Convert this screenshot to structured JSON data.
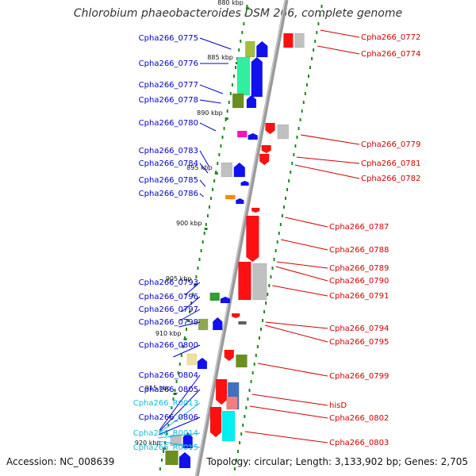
{
  "title": "Chlorobium phaeobacteroides DSM 266, complete genome",
  "footer": {
    "accession": "Accession: NC_008639",
    "topology": "Topology: circular; Length: 3,133,902 bp; Genes: 2,705"
  },
  "colors": {
    "left_label": "#0000c8",
    "right_label": "#d00000",
    "rna_label": "#18b8d8",
    "backbone": "#9a9a9a",
    "tick": "#1a8a1a"
  },
  "kbp_labels": [
    "880 kbp",
    "885 kbp",
    "890 kbp",
    "895 kbp",
    "900 kbp",
    "905 kbp",
    "910 kbp",
    "915 kbp",
    "920 kbp"
  ],
  "left_genes": [
    "Cpha266_0775",
    "Cpha266_0776",
    "Cpha266_0777",
    "Cpha266_0778",
    "Cpha266_0780",
    "Cpha266_0783",
    "Cpha266_0784",
    "Cpha266_0785",
    "Cpha266_0786",
    "Cpha266_0793",
    "Cpha266_0796",
    "Cpha266_0797",
    "Cpha266_0798",
    "Cpha266_0800",
    "Cpha266_0804",
    "Cpha266_0805",
    "Cpha266_R0013",
    "Cpha266_0806",
    "Cpha266_R0014",
    "Cpha266_R0015"
  ],
  "right_genes": [
    "Cpha266_0772",
    "Cpha266_0774",
    "Cpha266_0779",
    "Cpha266_0781",
    "Cpha266_0782",
    "Cpha266_0787",
    "Cpha266_0788",
    "Cpha266_0789",
    "Cpha266_0790",
    "Cpha266_0791",
    "Cpha266_0794",
    "Cpha266_0795",
    "Cpha266_0799",
    "hisD",
    "Cpha266_0802",
    "Cpha266_0803"
  ]
}
